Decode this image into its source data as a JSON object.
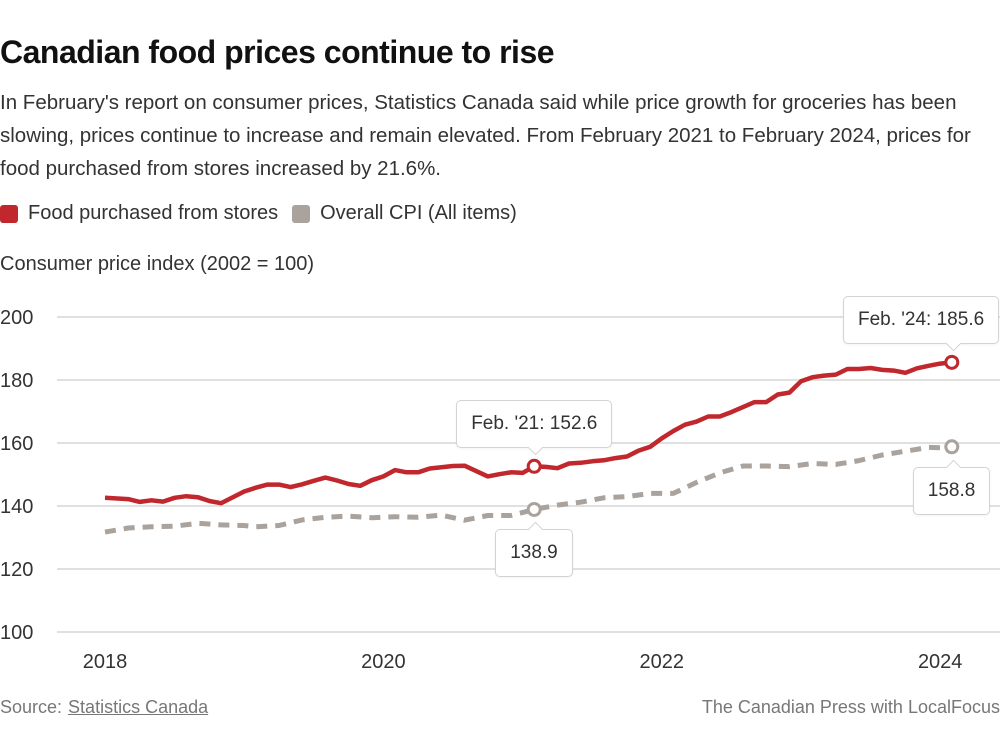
{
  "header": {
    "title": "Canadian food prices continue to rise",
    "subtitle": "In February's report on consumer prices, Statistics Canada said while price growth for groceries has been slowing, prices continue to increase and remain elevated. From February 2021 to February 2024, prices for food purchased from stores increased by 21.6%."
  },
  "legend": [
    {
      "label": "Food purchased from stores",
      "color": "#c0282d"
    },
    {
      "label": "Overall CPI (All items)",
      "color": "#aaa29c"
    }
  ],
  "footer": {
    "source_prefix": "Source:",
    "source_link": "Statistics Canada",
    "credit": "The Canadian Press with LocalFocus"
  },
  "chart_data": {
    "type": "line",
    "title": "Canadian food prices continue to rise",
    "xlabel": "",
    "ylabel": "Consumer price index (2002 = 100)",
    "ylim": [
      100,
      200
    ],
    "yticks": [
      100,
      120,
      140,
      160,
      180,
      200
    ],
    "xticks": [
      {
        "label": "2018",
        "month_index": 0
      },
      {
        "label": "2020",
        "month_index": 24
      },
      {
        "label": "2022",
        "month_index": 48
      },
      {
        "label": "2024",
        "month_index": 72
      }
    ],
    "grid": true,
    "legend_position": "top-left",
    "x_unit": "months since Jan 2018",
    "series": [
      {
        "name": "Food purchased from stores",
        "color": "#c0282d",
        "style": "solid",
        "points": [
          [
            0,
            142.6
          ],
          [
            2,
            142.2
          ],
          [
            3,
            141.3
          ],
          [
            4,
            141.8
          ],
          [
            5,
            141.4
          ],
          [
            6,
            142.6
          ],
          [
            7,
            143.1
          ],
          [
            8,
            142.8
          ],
          [
            9,
            141.6
          ],
          [
            10,
            140.9
          ],
          [
            12,
            144.6
          ],
          [
            13,
            145.8
          ],
          [
            14,
            146.8
          ],
          [
            15,
            146.8
          ],
          [
            16,
            146.0
          ],
          [
            17,
            146.9
          ],
          [
            18,
            148.0
          ],
          [
            19,
            149.0
          ],
          [
            20,
            148.1
          ],
          [
            21,
            147.0
          ],
          [
            22,
            146.4
          ],
          [
            23,
            148.2
          ],
          [
            24,
            149.4
          ],
          [
            25,
            151.4
          ],
          [
            26,
            150.7
          ],
          [
            27,
            150.7
          ],
          [
            28,
            151.9
          ],
          [
            29,
            152.3
          ],
          [
            30,
            152.7
          ],
          [
            31,
            152.8
          ],
          [
            33,
            149.4
          ],
          [
            34,
            150.1
          ],
          [
            35,
            150.7
          ],
          [
            36,
            150.5
          ],
          [
            37,
            152.6
          ],
          [
            38,
            152.4
          ],
          [
            39,
            152.0
          ],
          [
            40,
            153.5
          ],
          [
            41,
            153.7
          ],
          [
            42,
            154.2
          ],
          [
            43,
            154.5
          ],
          [
            44,
            155.2
          ],
          [
            45,
            155.7
          ],
          [
            46,
            157.6
          ],
          [
            47,
            158.8
          ],
          [
            48,
            161.5
          ],
          [
            49,
            163.8
          ],
          [
            50,
            165.8
          ],
          [
            51,
            166.8
          ],
          [
            52,
            168.4
          ],
          [
            53,
            168.4
          ],
          [
            54,
            169.8
          ],
          [
            55,
            171.4
          ],
          [
            56,
            173.0
          ],
          [
            57,
            173.0
          ],
          [
            58,
            175.4
          ],
          [
            59,
            176.0
          ],
          [
            60,
            179.6
          ],
          [
            61,
            180.9
          ],
          [
            62,
            181.4
          ],
          [
            63,
            181.7
          ],
          [
            64,
            183.5
          ],
          [
            65,
            183.5
          ],
          [
            66,
            183.8
          ],
          [
            67,
            183.2
          ],
          [
            68,
            183.0
          ],
          [
            69,
            182.3
          ],
          [
            70,
            183.7
          ],
          [
            71,
            184.5
          ],
          [
            72,
            185.2
          ],
          [
            73,
            185.6
          ]
        ],
        "annotation": {
          "month_index": 37,
          "value": 152.6,
          "label": "Feb. '21: 152.6"
        },
        "end_annotation": {
          "month_index": 73,
          "value": 185.6,
          "label": "Feb. '24: 185.6"
        }
      },
      {
        "name": "Overall CPI (All items)",
        "color": "#aaa29c",
        "style": "dashed",
        "points": [
          [
            0,
            131.7
          ],
          [
            2,
            133.0
          ],
          [
            4,
            133.4
          ],
          [
            6,
            133.6
          ],
          [
            8,
            134.5
          ],
          [
            10,
            134.0
          ],
          [
            12,
            133.8
          ],
          [
            13,
            133.4
          ],
          [
            15,
            133.8
          ],
          [
            17,
            135.6
          ],
          [
            19,
            136.4
          ],
          [
            21,
            136.8
          ],
          [
            23,
            136.3
          ],
          [
            25,
            136.6
          ],
          [
            27,
            136.4
          ],
          [
            29,
            137.1
          ],
          [
            31,
            135.5
          ],
          [
            33,
            137.0
          ],
          [
            35,
            137.0
          ],
          [
            37,
            138.9
          ],
          [
            39,
            140.3
          ],
          [
            41,
            141.2
          ],
          [
            43,
            142.6
          ],
          [
            45,
            143.0
          ],
          [
            47,
            144.0
          ],
          [
            49,
            144.0
          ],
          [
            51,
            147.5
          ],
          [
            53,
            150.5
          ],
          [
            55,
            152.7
          ],
          [
            57,
            152.7
          ],
          [
            59,
            152.5
          ],
          [
            61,
            153.5
          ],
          [
            63,
            153.2
          ],
          [
            65,
            154.4
          ],
          [
            67,
            156.2
          ],
          [
            69,
            157.4
          ],
          [
            71,
            158.6
          ],
          [
            72,
            158.5
          ],
          [
            73,
            158.8
          ]
        ],
        "annotation": {
          "month_index": 37,
          "value": 138.9,
          "label": "138.9"
        },
        "end_annotation": {
          "month_index": 73,
          "value": 158.8,
          "label": "158.8"
        }
      }
    ]
  }
}
